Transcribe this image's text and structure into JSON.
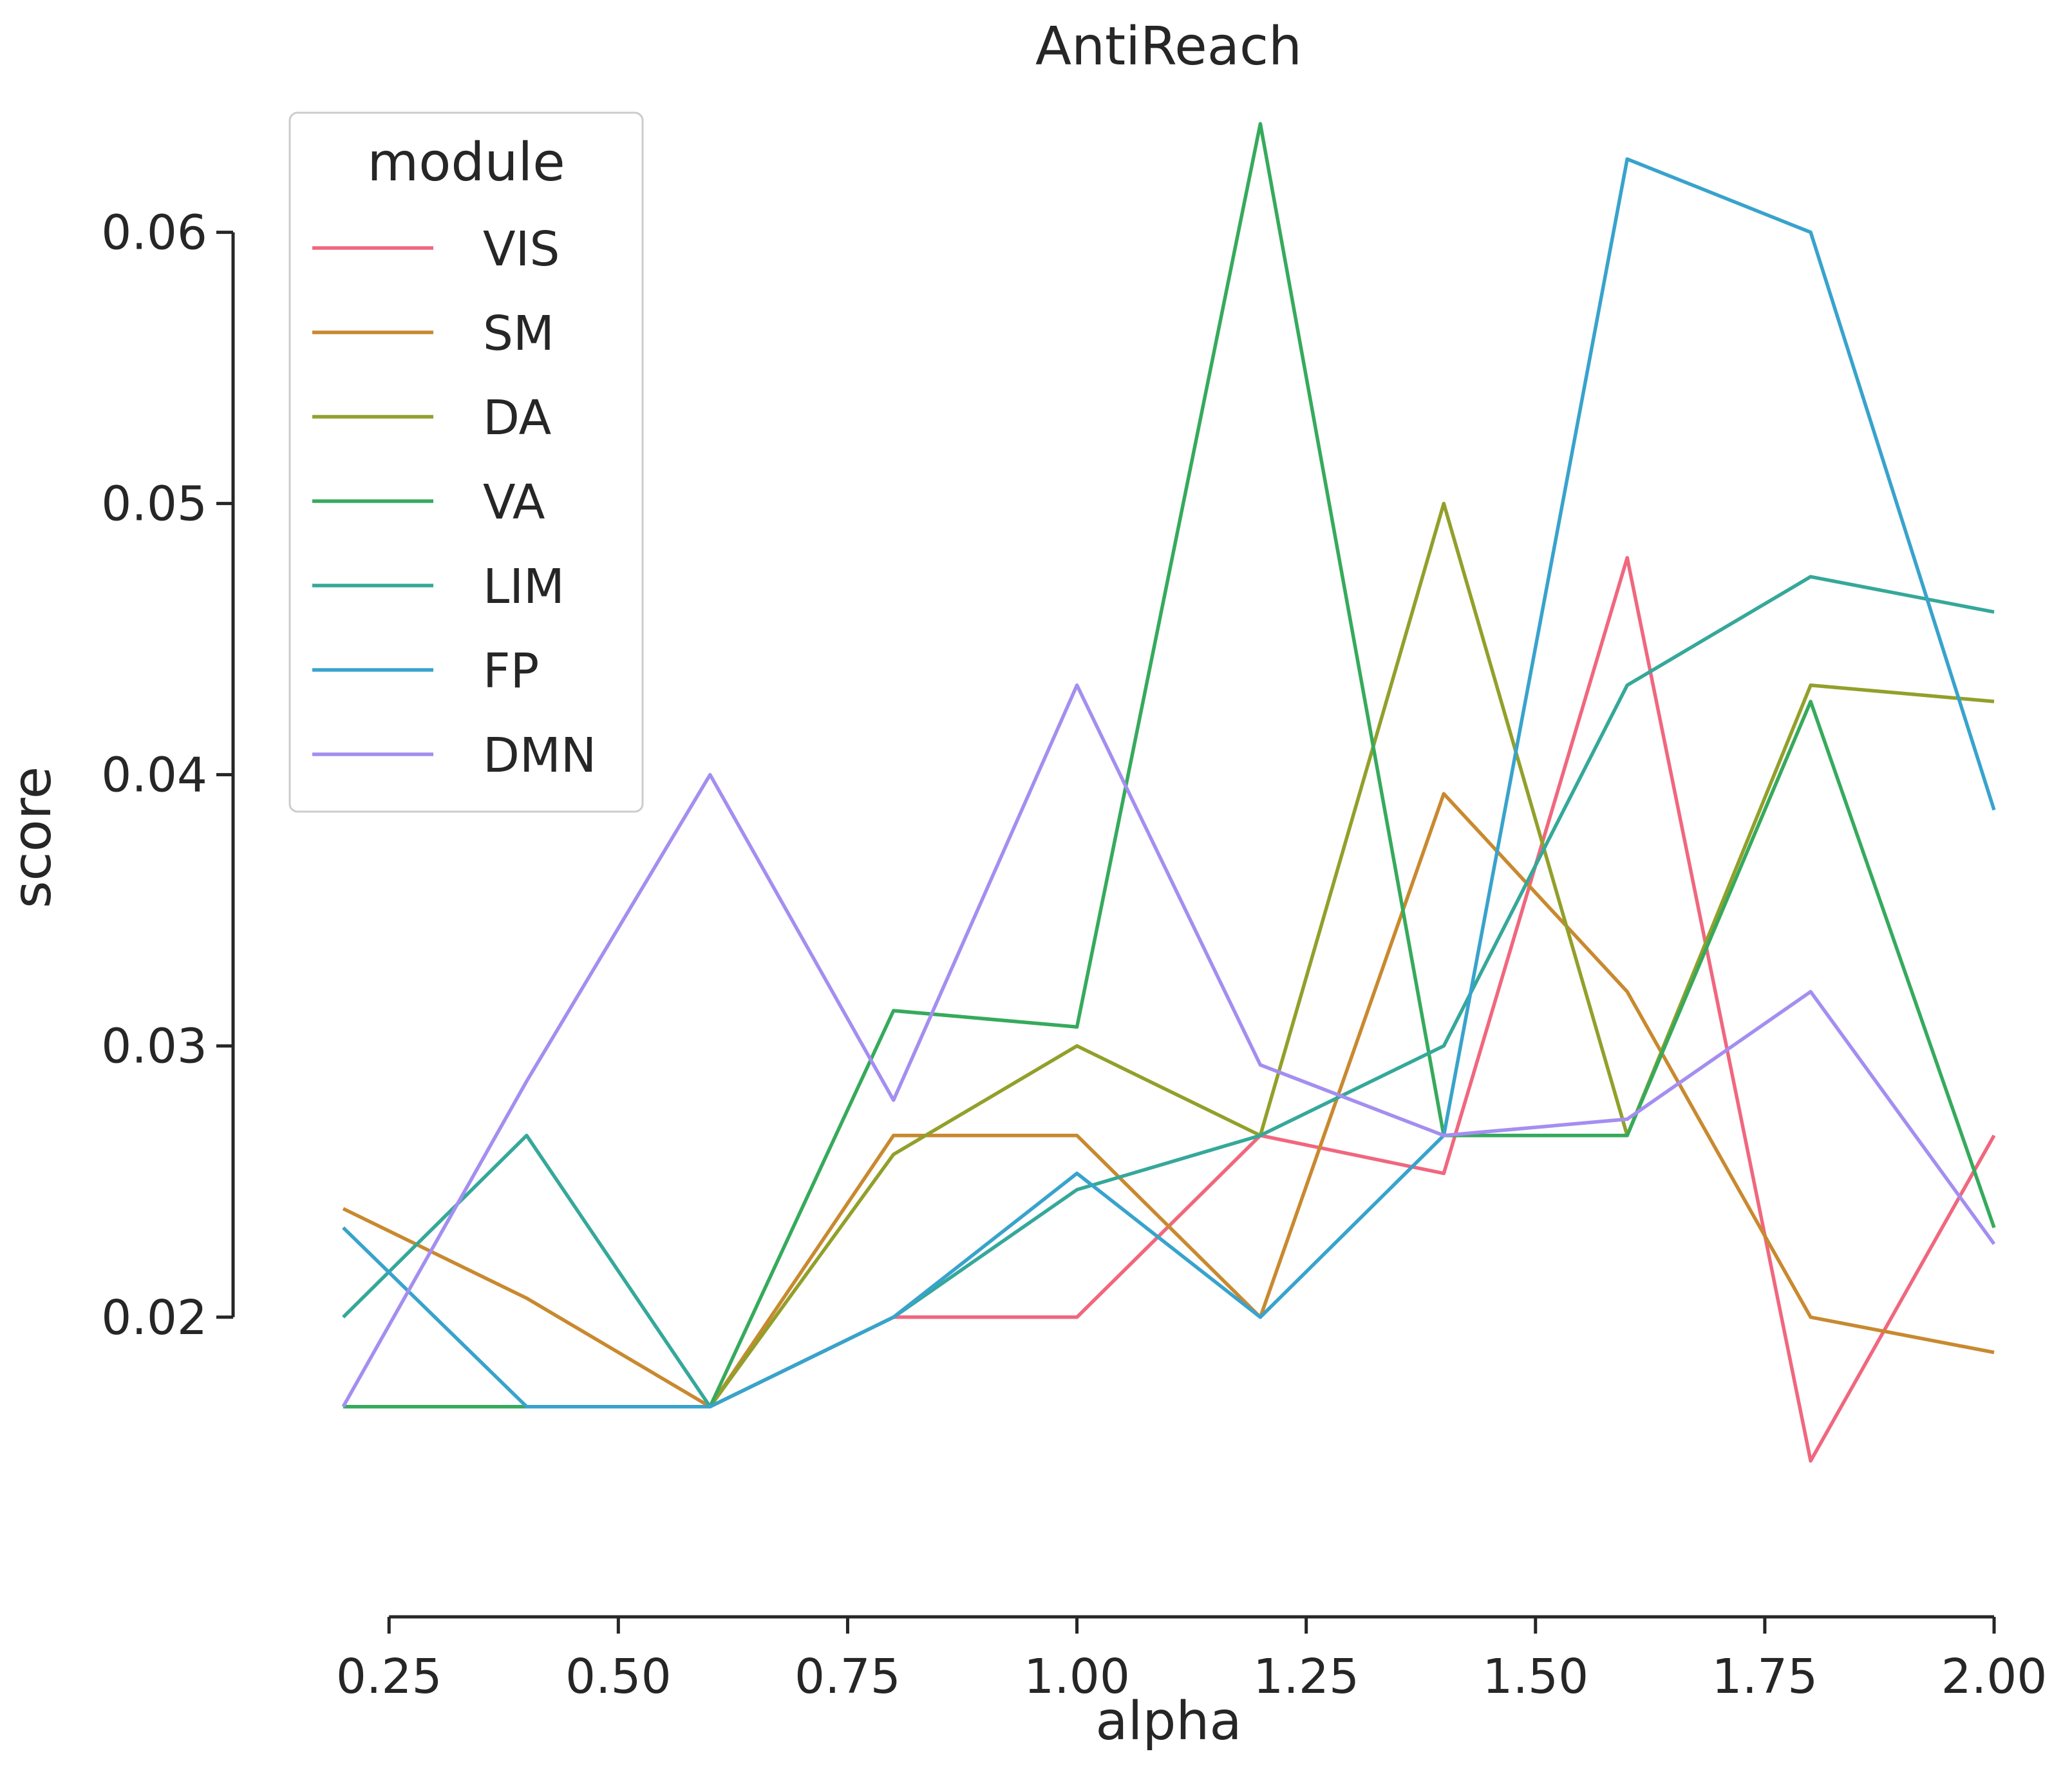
{
  "chart_data": {
    "type": "line",
    "title": "AntiReach",
    "xlabel": "alpha",
    "ylabel": "score",
    "xlim": [
      0.2,
      2.0
    ],
    "ylim": [
      0.0118,
      0.066
    ],
    "x_ticks": [
      {
        "value": 0.25,
        "label": "0.25"
      },
      {
        "value": 0.5,
        "label": "0.50"
      },
      {
        "value": 0.75,
        "label": "0.75"
      },
      {
        "value": 1.0,
        "label": "1.00"
      },
      {
        "value": 1.25,
        "label": "1.25"
      },
      {
        "value": 1.5,
        "label": "1.50"
      },
      {
        "value": 1.75,
        "label": "1.75"
      },
      {
        "value": 2.0,
        "label": "2.00"
      }
    ],
    "y_ticks": [
      {
        "value": 0.02,
        "label": "0.02"
      },
      {
        "value": 0.03,
        "label": "0.03"
      },
      {
        "value": 0.04,
        "label": "0.04"
      },
      {
        "value": 0.05,
        "label": "0.05"
      },
      {
        "value": 0.06,
        "label": "0.06"
      }
    ],
    "grid": false,
    "legend": {
      "title": "module",
      "placement": "top-left"
    },
    "x": [
      0.2,
      0.4,
      0.6,
      0.8,
      1.0,
      1.2,
      1.4,
      1.6,
      1.8,
      2.0
    ],
    "series": [
      {
        "name": "VIS",
        "color": "#f0677e",
        "values": [
          0.0167,
          0.0167,
          0.0167,
          0.02,
          0.02,
          0.0267,
          0.0253,
          0.048,
          0.0147,
          0.0267
        ]
      },
      {
        "name": "SM",
        "color": "#c9892f",
        "values": [
          0.024,
          0.0207,
          0.0167,
          0.0267,
          0.0267,
          0.02,
          0.0393,
          0.032,
          0.02,
          0.0187
        ]
      },
      {
        "name": "DA",
        "color": "#92a02b",
        "values": [
          0.0167,
          0.0167,
          0.0167,
          0.026,
          0.03,
          0.0267,
          0.05,
          0.0267,
          0.0433,
          0.0427
        ]
      },
      {
        "name": "VA",
        "color": "#36aa5c",
        "values": [
          0.0167,
          0.0167,
          0.0167,
          0.0313,
          0.0307,
          0.064,
          0.0267,
          0.0267,
          0.0427,
          0.0233
        ]
      },
      {
        "name": "LIM",
        "color": "#35a89a",
        "values": [
          0.02,
          0.0267,
          0.0167,
          0.02,
          0.0247,
          0.0267,
          0.03,
          0.0433,
          0.0473,
          0.046
        ]
      },
      {
        "name": "FP",
        "color": "#38a3cc",
        "values": [
          0.0233,
          0.0167,
          0.0167,
          0.02,
          0.0253,
          0.02,
          0.0267,
          0.0627,
          0.06,
          0.0387
        ]
      },
      {
        "name": "DMN",
        "color": "#a48ef0",
        "values": [
          0.0167,
          0.0287,
          0.04,
          0.028,
          0.0433,
          0.0293,
          0.0267,
          0.0273,
          0.032,
          0.0227
        ]
      }
    ]
  }
}
